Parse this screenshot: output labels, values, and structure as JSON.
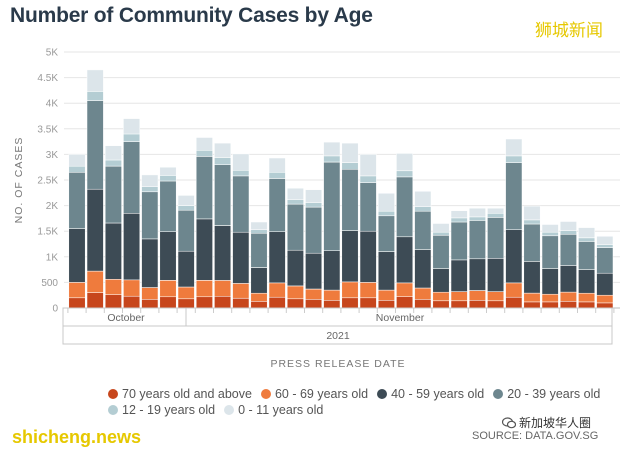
{
  "header": {
    "title": "Number of Community Cases by Age",
    "cn_logo": "狮城新闻"
  },
  "watermarks": {
    "site": "shicheng.news",
    "wechat": "新加坡华人圈",
    "source": "SOURCE: DATA.GOV.SG"
  },
  "colors": {
    "age_70_plus": "#c7461c",
    "age_60_69": "#ef7b3d",
    "age_40_59": "#3d4b55",
    "age_20_39": "#6d868e",
    "age_12_19": "#b4cdd3",
    "age_0_11": "#dce5ea",
    "watermark": "#e6c800"
  },
  "chart_data": {
    "type": "bar",
    "stacked": true,
    "title": "Number of Community Cases by Age",
    "xlabel": "PRESS RELEASE DATE",
    "ylabel": "NO. OF CASES",
    "ylim": [
      0,
      5000
    ],
    "yticks": [
      "0",
      "500",
      "1K",
      "1.5K",
      "2K",
      "2.5K",
      "3K",
      "3.5K",
      "4K",
      "4.5K",
      "5K"
    ],
    "ytick_values": [
      0,
      500,
      1000,
      1500,
      2000,
      2500,
      3000,
      3500,
      4000,
      4500,
      5000
    ],
    "month_labels": [
      "October",
      "November"
    ],
    "year_label": "2021",
    "grid": true,
    "legend_position": "bottom",
    "series": [
      {
        "name": "70 years old and above",
        "color": "#c7461c",
        "values": [
          200,
          300,
          260,
          230,
          170,
          220,
          180,
          220,
          230,
          190,
          130,
          210,
          180,
          170,
          150,
          200,
          200,
          150,
          220,
          170,
          140,
          140,
          150,
          140,
          210,
          120,
          120,
          130,
          120,
          100
        ]
      },
      {
        "name": "60 - 69 years old",
        "color": "#ef7b3d",
        "values": [
          300,
          420,
          300,
          320,
          230,
          320,
          230,
          320,
          310,
          290,
          160,
          280,
          250,
          200,
          200,
          310,
          300,
          200,
          270,
          220,
          170,
          180,
          190,
          180,
          280,
          170,
          150,
          180,
          170,
          150
        ]
      },
      {
        "name": "40 - 59 years old",
        "color": "#3d4b55",
        "values": [
          1050,
          1600,
          1100,
          1300,
          950,
          950,
          700,
          1200,
          1070,
          1000,
          500,
          1000,
          700,
          700,
          770,
          1000,
          1000,
          750,
          900,
          750,
          460,
          620,
          620,
          650,
          1040,
          620,
          500,
          520,
          460,
          430
        ]
      },
      {
        "name": "20 - 39 years old",
        "color": "#6d868e",
        "values": [
          1100,
          1730,
          1110,
          1400,
          920,
          990,
          800,
          1220,
          1190,
          1100,
          670,
          1040,
          900,
          900,
          1730,
          1200,
          950,
          700,
          1170,
          750,
          650,
          740,
          750,
          800,
          1310,
          730,
          640,
          610,
          550,
          500
        ]
      },
      {
        "name": "12 - 19 years old",
        "color": "#b4cdd3",
        "values": [
          120,
          180,
          120,
          150,
          100,
          110,
          90,
          120,
          140,
          110,
          70,
          120,
          90,
          90,
          120,
          130,
          130,
          90,
          120,
          90,
          60,
          80,
          70,
          80,
          130,
          80,
          70,
          70,
          70,
          60
        ]
      },
      {
        "name": "0 - 11 years old",
        "color": "#dce5ea",
        "values": [
          230,
          420,
          280,
          300,
          230,
          160,
          200,
          250,
          280,
          320,
          150,
          280,
          220,
          250,
          270,
          380,
          420,
          350,
          340,
          300,
          170,
          140,
          170,
          100,
          330,
          270,
          150,
          180,
          200,
          160
        ]
      }
    ]
  },
  "legend": {
    "items": [
      {
        "label": "70 years old and above",
        "color": "#c7461c"
      },
      {
        "label": "60 - 69 years old",
        "color": "#ef7b3d"
      },
      {
        "label": "40 - 59 years old",
        "color": "#3d4b55"
      },
      {
        "label": "20 - 39 years old",
        "color": "#6d868e"
      },
      {
        "label": "12 - 19 years old",
        "color": "#b4cdd3"
      },
      {
        "label": "0 - 11 years old",
        "color": "#dce5ea"
      }
    ]
  }
}
